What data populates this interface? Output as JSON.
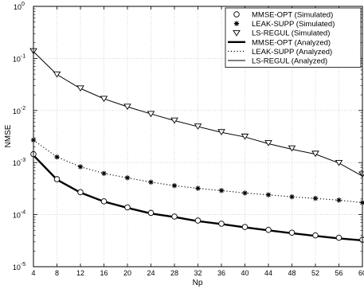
{
  "chart_data": {
    "type": "line",
    "title": "",
    "xlabel": "Np",
    "ylabel": "NMSE",
    "xlim": [
      4,
      60
    ],
    "ylim": [
      1e-05,
      1
    ],
    "yscale": "log",
    "grid": true,
    "legend_position": "top-right",
    "x_ticks": [
      4,
      8,
      12,
      16,
      20,
      24,
      28,
      32,
      36,
      40,
      44,
      48,
      52,
      56,
      60
    ],
    "y_ticks": [
      1e-05,
      0.0001,
      0.001,
      0.01,
      0.1,
      1
    ],
    "y_tick_labels": [
      {
        "base": "10",
        "exp": "-5"
      },
      {
        "base": "10",
        "exp": "-4"
      },
      {
        "base": "10",
        "exp": "-3"
      },
      {
        "base": "10",
        "exp": "-2"
      },
      {
        "base": "10",
        "exp": "-1"
      },
      {
        "base": "10",
        "exp": "0"
      }
    ],
    "x": [
      4,
      8,
      12,
      16,
      20,
      24,
      28,
      32,
      36,
      40,
      44,
      48,
      52,
      56,
      60
    ],
    "series": [
      {
        "name": "MMSE-OPT (Simulated)",
        "style": "marker",
        "marker": "circle",
        "values": [
          0.00145,
          0.00048,
          0.00027,
          0.00018,
          0.000138,
          0.000108,
          9.2e-05,
          7.7e-05,
          6.7e-05,
          5.8e-05,
          5.1e-05,
          4.5e-05,
          4e-05,
          3.6e-05,
          3.3e-05
        ]
      },
      {
        "name": "LEAK-SUPP (Simulated)",
        "style": "marker",
        "marker": "star",
        "values": [
          0.0027,
          0.00128,
          0.00083,
          0.00062,
          0.00051,
          0.00042,
          0.00036,
          0.00032,
          0.00029,
          0.00026,
          0.00024,
          0.00022,
          0.000205,
          0.00019,
          0.00017
        ]
      },
      {
        "name": "LS-REGUL (Simulated)",
        "style": "marker",
        "marker": "triangle-down",
        "values": [
          0.14,
          0.05,
          0.027,
          0.017,
          0.012,
          0.0087,
          0.0065,
          0.005,
          0.0039,
          0.0032,
          0.0024,
          0.0019,
          0.0015,
          0.001,
          0.0006
        ]
      },
      {
        "name": "MMSE-OPT (Analyzed)",
        "style": "line",
        "line": "thick-solid",
        "values": [
          0.00138,
          0.00047,
          0.000265,
          0.000178,
          0.000135,
          0.000105,
          9e-05,
          7.5e-05,
          6.6e-05,
          5.7e-05,
          5e-05,
          4.4e-05,
          3.9e-05,
          3.5e-05,
          3.2e-05
        ]
      },
      {
        "name": "LEAK-SUPP (Analyzed)",
        "style": "line",
        "line": "dotted",
        "values": [
          0.0027,
          0.00128,
          0.00083,
          0.00062,
          0.00051,
          0.00042,
          0.00036,
          0.00032,
          0.00029,
          0.00026,
          0.00024,
          0.00022,
          0.000205,
          0.00019,
          0.00017
        ]
      },
      {
        "name": "LS-REGUL (Analyzed)",
        "style": "line",
        "line": "solid",
        "values": [
          0.135,
          0.049,
          0.0265,
          0.0168,
          0.0118,
          0.0086,
          0.0064,
          0.0049,
          0.0038,
          0.0031,
          0.0023,
          0.0018,
          0.00145,
          0.00098,
          0.00055
        ]
      }
    ]
  }
}
